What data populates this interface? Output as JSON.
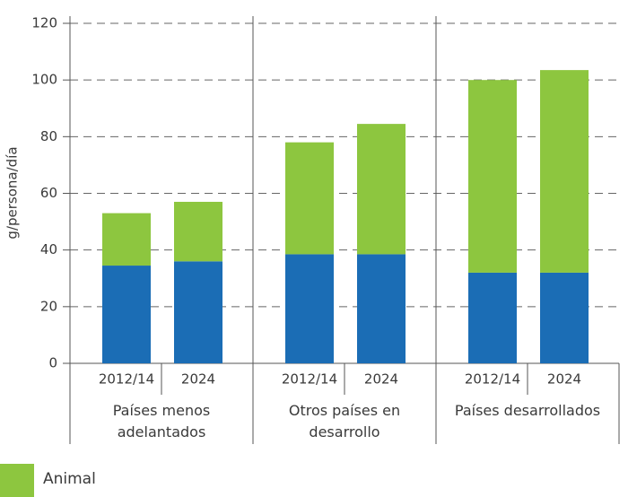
{
  "chart_data": {
    "type": "stacked-bar",
    "ylabel": "g/persona/día",
    "categories": [
      "2012/14",
      "2024",
      "2012/14",
      "2024",
      "2012/14",
      "2024"
    ],
    "groups": [
      "Países menos adelantados",
      "Otros países en desarrollo",
      "Países desarrollados"
    ],
    "series": [
      {
        "color": "#1b6db5",
        "values": [
          34.5,
          36,
          38.5,
          38.5,
          32,
          32
        ]
      },
      {
        "name": "Animal",
        "color": "#8dc63f",
        "values": [
          18.5,
          21,
          39.5,
          46,
          68,
          71.5
        ]
      }
    ],
    "ylim": [
      0,
      120
    ],
    "yticks": [
      0,
      20,
      40,
      60,
      80,
      100,
      120
    ],
    "grid": true
  }
}
